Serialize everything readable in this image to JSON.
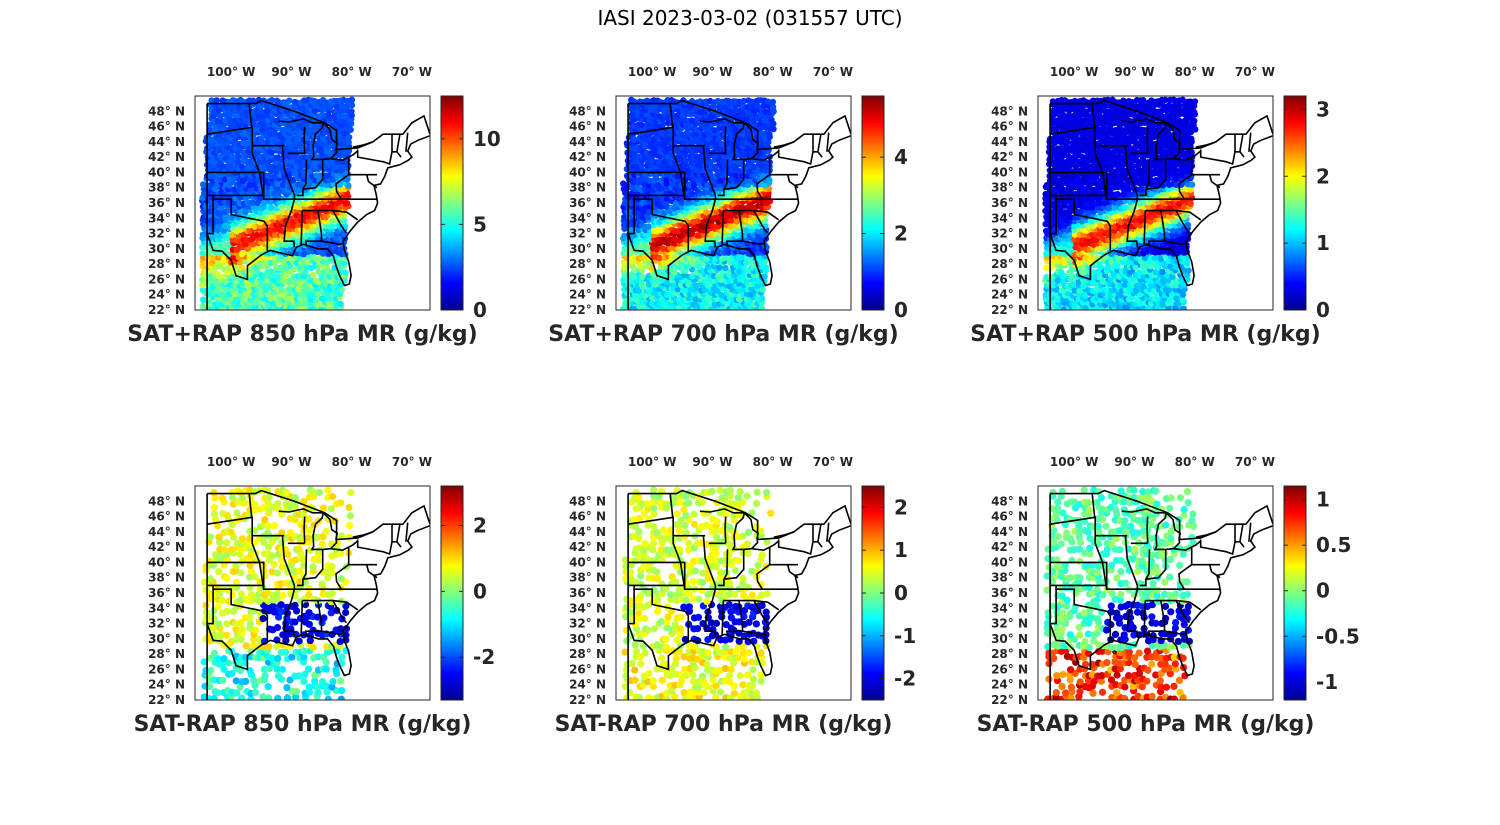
{
  "figure": {
    "title": "IASI 2023-03-02 (031557 UTC)",
    "colormap": [
      "#00008f",
      "#0000ff",
      "#0080ff",
      "#00ffff",
      "#80ff80",
      "#ffff00",
      "#ff8000",
      "#ff0000",
      "#800000"
    ]
  },
  "chart_data": [
    {
      "type": "heatmap",
      "title": "SAT+RAP 850 hPa MR (g/kg)",
      "lon_ticks": [
        "100° W",
        "90° W",
        "80° W",
        "70° W"
      ],
      "lat_ticks": [
        "48° N",
        "46° N",
        "44° N",
        "42° N",
        "40° N",
        "38° N",
        "36° N",
        "34° N",
        "32° N",
        "30° N",
        "28° N",
        "26° N",
        "24° N",
        "22° N"
      ],
      "xlim": [
        -106,
        -67
      ],
      "ylim": [
        22,
        50
      ],
      "clim": [
        0,
        12.5
      ],
      "colorbar_ticks": [
        {
          "value": 0,
          "label": "0"
        },
        {
          "value": 5,
          "label": "5"
        },
        {
          "value": 10,
          "label": "10"
        }
      ],
      "field": "sum",
      "base": 2.5,
      "moist_peak": 11,
      "gulf": 6
    },
    {
      "type": "heatmap",
      "title": "SAT+RAP 700 hPa MR (g/kg)",
      "lon_ticks": [
        "100° W",
        "90° W",
        "80° W",
        "70° W"
      ],
      "lat_ticks": [
        "48° N",
        "46° N",
        "44° N",
        "42° N",
        "40° N",
        "38° N",
        "36° N",
        "34° N",
        "32° N",
        "30° N",
        "28° N",
        "26° N",
        "24° N",
        "22° N"
      ],
      "xlim": [
        -106,
        -67
      ],
      "ylim": [
        22,
        50
      ],
      "clim": [
        0,
        5.6
      ],
      "colorbar_ticks": [
        {
          "value": 0,
          "label": "0"
        },
        {
          "value": 2,
          "label": "2"
        },
        {
          "value": 4,
          "label": "4"
        }
      ],
      "field": "sum",
      "base": 1.0,
      "moist_peak": 5.3,
      "gulf": 2.2
    },
    {
      "type": "heatmap",
      "title": "SAT+RAP 500 hPa MR (g/kg)",
      "lon_ticks": [
        "100° W",
        "90° W",
        "80° W",
        "70° W"
      ],
      "lat_ticks": [
        "48° N",
        "46° N",
        "44° N",
        "42° N",
        "40° N",
        "38° N",
        "36° N",
        "34° N",
        "32° N",
        "30° N",
        "28° N",
        "26° N",
        "24° N",
        "22° N"
      ],
      "xlim": [
        -106,
        -67
      ],
      "ylim": [
        22,
        50
      ],
      "clim": [
        0,
        3.2
      ],
      "colorbar_ticks": [
        {
          "value": 0,
          "label": "0"
        },
        {
          "value": 1,
          "label": "1"
        },
        {
          "value": 2,
          "label": "2"
        },
        {
          "value": 3,
          "label": "3"
        }
      ],
      "field": "sum",
      "base": 0.3,
      "moist_peak": 2.8,
      "gulf": 1.2
    },
    {
      "type": "heatmap",
      "title": "SAT-RAP 850 hPa MR (g/kg)",
      "lon_ticks": [
        "100° W",
        "90° W",
        "80° W",
        "70° W"
      ],
      "lat_ticks": [
        "48° N",
        "46° N",
        "44° N",
        "42° N",
        "40° N",
        "38° N",
        "36° N",
        "34° N",
        "32° N",
        "30° N",
        "28° N",
        "26° N",
        "24° N",
        "22° N"
      ],
      "xlim": [
        -106,
        -67
      ],
      "ylim": [
        22,
        50
      ],
      "clim": [
        -3.3,
        3.2
      ],
      "colorbar_ticks": [
        {
          "value": -2,
          "label": "-2"
        },
        {
          "value": 0,
          "label": "0"
        },
        {
          "value": 2,
          "label": "2"
        }
      ],
      "field": "diff",
      "base": 0.6,
      "moist_peak": -3.0,
      "gulf": -1.0
    },
    {
      "type": "heatmap",
      "title": "SAT-RAP 700 hPa MR (g/kg)",
      "lon_ticks": [
        "100° W",
        "90° W",
        "80° W",
        "70° W"
      ],
      "lat_ticks": [
        "48° N",
        "46° N",
        "44° N",
        "42° N",
        "40° N",
        "38° N",
        "36° N",
        "34° N",
        "32° N",
        "30° N",
        "28° N",
        "26° N",
        "24° N",
        "22° N"
      ],
      "xlim": [
        -106,
        -67
      ],
      "ylim": [
        22,
        50
      ],
      "clim": [
        -2.5,
        2.5
      ],
      "colorbar_ticks": [
        {
          "value": -2,
          "label": "-2"
        },
        {
          "value": -1,
          "label": "-1"
        },
        {
          "value": 0,
          "label": "0"
        },
        {
          "value": 1,
          "label": "1"
        },
        {
          "value": 2,
          "label": "2"
        }
      ],
      "field": "diff",
      "base": 0.4,
      "moist_peak": -2.3,
      "gulf": 0.6
    },
    {
      "type": "heatmap",
      "title": "SAT-RAP 500 hPa MR (g/kg)",
      "lon_ticks": [
        "100° W",
        "90° W",
        "80° W",
        "70° W"
      ],
      "lat_ticks": [
        "48° N",
        "46° N",
        "44° N",
        "42° N",
        "40° N",
        "38° N",
        "36° N",
        "34° N",
        "32° N",
        "30° N",
        "28° N",
        "26° N",
        "24° N",
        "22° N"
      ],
      "xlim": [
        -106,
        -67
      ],
      "ylim": [
        22,
        50
      ],
      "clim": [
        -1.2,
        1.15
      ],
      "colorbar_ticks": [
        {
          "value": -1,
          "label": "-1"
        },
        {
          "value": -0.5,
          "label": "-0.5"
        },
        {
          "value": 0,
          "label": "0"
        },
        {
          "value": 0.5,
          "label": "0.5"
        },
        {
          "value": 1,
          "label": "1"
        }
      ],
      "field": "diff",
      "base": -0.1,
      "moist_peak": -1.1,
      "gulf": 0.9
    }
  ]
}
